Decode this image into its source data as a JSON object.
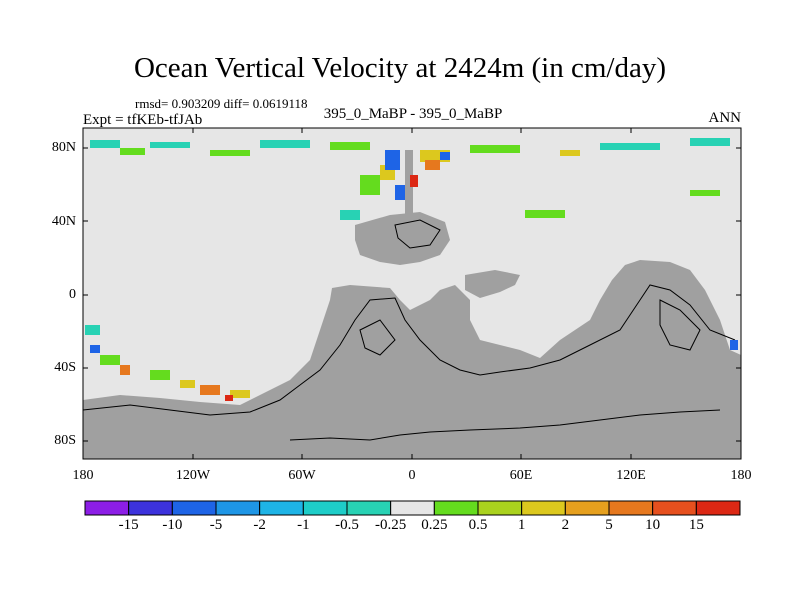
{
  "title": "Ocean Vertical Velocity at 2424m (in cm/day)",
  "stats_line": "rmsd= 0.903209 diff= 0.0619118",
  "experiment_line": "Expt = tfKEb-tfJAb",
  "center_line": "395_0_MaBP - 395_0_MaBP",
  "season": "ANN",
  "lat_labels": [
    "80N",
    "40N",
    "0",
    "40S",
    "80S"
  ],
  "lon_labels": [
    "180",
    "120W",
    "60W",
    "0",
    "60E",
    "120E",
    "180"
  ],
  "colorbar": {
    "labels": [
      "-15",
      "-10",
      "-5",
      "-2",
      "-1",
      "-0.5",
      "-0.25",
      "0.25",
      "0.5",
      "1",
      "2",
      "5",
      "10",
      "15"
    ],
    "colors": [
      "#8c1ee6",
      "#3c32dc",
      "#1e64e6",
      "#1e96e6",
      "#1eb4e6",
      "#1ecdc8",
      "#28d2b4",
      "#e6e6e6",
      "#64dc1e",
      "#aad21e",
      "#dcc81e",
      "#e6a01e",
      "#e6781e",
      "#e6501e",
      "#dc2814"
    ]
  },
  "map_colors": {
    "ocean_zero": "#e6e6e6",
    "land": "#a0a0a0",
    "coast_lines": "#000000"
  }
}
